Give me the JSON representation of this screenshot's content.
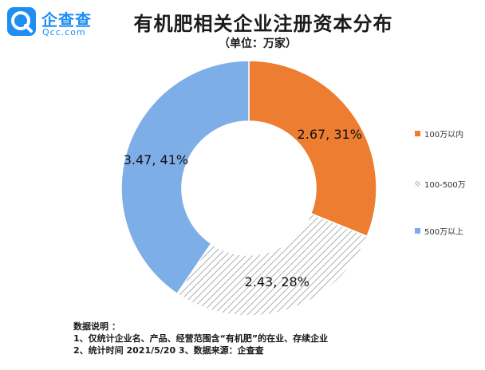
{
  "header": {
    "brand": "企查查",
    "domain": "Qcc.com",
    "title": "有机肥相关企业注册资本分布",
    "subtitle": "（单位：万家）"
  },
  "colors": {
    "brand": "#1f8ef1",
    "orange": "#ed7d31",
    "hatch": "#a9b1ad",
    "blue": "#7eaee8"
  },
  "chart_data": {
    "type": "pie",
    "donut": true,
    "unit": "万家",
    "slices": [
      {
        "name": "100万以内",
        "value": 2.67,
        "percent": 31,
        "label": "2.67, 31%",
        "color": "#ed7d31",
        "pattern": "solid"
      },
      {
        "name": "100-500万",
        "value": 2.43,
        "percent": 28,
        "label": "2.43, 28%",
        "color": "#a9b1ad",
        "pattern": "hatch"
      },
      {
        "name": "500万以上",
        "value": 3.47,
        "percent": 41,
        "label": "3.47, 41%",
        "color": "#7eaee8",
        "pattern": "solid"
      }
    ],
    "legend_position": "right"
  },
  "notes": {
    "heading": "数据说明 ：",
    "line1": "1、仅统计企业名、产品、经营范围含“有机肥”的在业、存续企业",
    "line2": "2、统计时间 2021/5/20    3、数据来源：企查查"
  }
}
